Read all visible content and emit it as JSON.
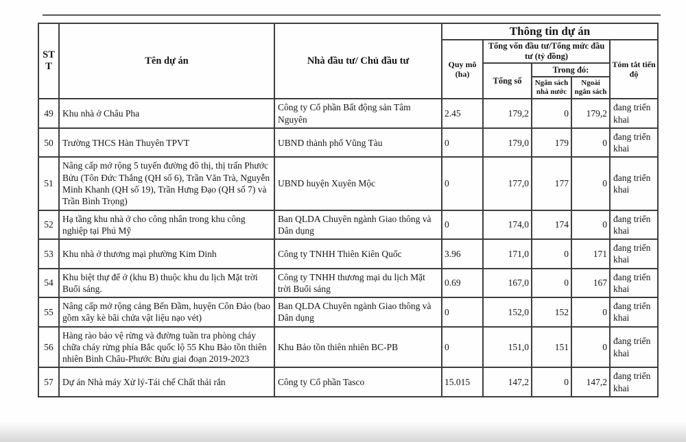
{
  "page": {
    "background": "#fefefe",
    "border_color": "#3e3e3e",
    "text_color": "#151515"
  },
  "header": {
    "stt": "STT",
    "project_name": "Tên dự án",
    "investor": "Nhà đầu tư/ Chủ đầu tư",
    "project_info": "Thông tin dự án",
    "scale": "Quy mô (ha)",
    "capital_group": "Tổng vốn đầu tư/Tổng mức đầu tư (tỷ đồng)",
    "total": "Tổng số",
    "of_which": "Trong đó:",
    "state_budget": "Ngân sách nhà nước",
    "non_budget": "Ngoài ngân sách",
    "progress": "Tóm tắt tiến độ"
  },
  "rows": [
    {
      "stt": "49",
      "name": "Khu nhà ở Châu Pha",
      "investor": "Công ty Cổ phần Bất động sản Tâm Nguyên",
      "scale": "2.45",
      "total": "179,2",
      "state_budget": "0",
      "non_budget": "179,2",
      "progress": "đang triển khai"
    },
    {
      "stt": "50",
      "name": "Trường THCS Hàn Thuyên TPVT",
      "investor": "UBND thành phố Vũng Tàu",
      "scale": "0",
      "total": "179,0",
      "state_budget": "179",
      "non_budget": "0",
      "progress": "đang triển khai"
    },
    {
      "stt": "51",
      "name": "Nâng cấp mở rộng 5 tuyến đường đô thị, thị trấn Phước Bửu (Tôn Đức Thắng (QH số 6), Trần Văn Trà, Nguyễn Minh Khanh (QH số 19), Trần Hưng Đạo (QH số 7) và Trần Bình Trọng)",
      "investor": "UBND huyện Xuyên Mộc",
      "scale": "0",
      "total": "177,0",
      "state_budget": "177",
      "non_budget": "0",
      "progress": "đang triển khai"
    },
    {
      "stt": "52",
      "name": "Hạ tầng khu nhà ở cho công nhân trong khu công nghiệp tại Phú Mỹ",
      "investor": "Ban QLDA Chuyên ngành Giao thông và Dân dụng",
      "scale": "0",
      "total": "174,0",
      "state_budget": "174",
      "non_budget": "0",
      "progress": "đang triển khai"
    },
    {
      "stt": "53",
      "name": "Khu nhà ở thương mại phường Kim Dinh",
      "investor": "Công ty TNHH Thiên Kiên Quốc",
      "scale": "3.96",
      "total": "171,0",
      "state_budget": "0",
      "non_budget": "171",
      "progress": "đang triển khai"
    },
    {
      "stt": "54",
      "name": "Khu biệt thự để ở (khu B) thuộc khu du lịch Mặt trời Buổi sáng.",
      "investor": "Công ty TNHH thương mại du lịch Mặt trời Buổi sáng",
      "scale": "0.69",
      "total": "167,0",
      "state_budget": "0",
      "non_budget": "167",
      "progress": "đang triển khai"
    },
    {
      "stt": "55",
      "name": "Nâng cấp mở rộng cảng Bến Đầm, huyện Côn Đảo (bao gồm xây kè bãi chứa vật liệu nạo vét)",
      "investor": "Ban QLDA Chuyên ngành Giao thông và Dân dụng",
      "scale": "0",
      "total": "152,0",
      "state_budget": "152",
      "non_budget": "0",
      "progress": "đang triển khai"
    },
    {
      "stt": "56",
      "name": "Hàng rào bảo vệ rừng và đường tuần tra phòng cháy chữa cháy rừng phía Bắc quốc lộ 55 Khu Bảo tồn thiên nhiên Bình Châu-Phước Bửu giai đoạn 2019-2023",
      "investor": "Khu Bảo tồn thiên nhiên BC-PB",
      "scale": "0",
      "total": "151,0",
      "state_budget": "151",
      "non_budget": "0",
      "progress": "đang triển khai"
    },
    {
      "stt": "57",
      "name": "Dự án Nhà máy Xử lý-Tái chế Chất thải rắn",
      "investor": "Công ty Cổ phần Tasco",
      "scale": "15.015",
      "total": "147,2",
      "state_budget": "0",
      "non_budget": "147,2",
      "progress": "đang triển khai"
    }
  ]
}
